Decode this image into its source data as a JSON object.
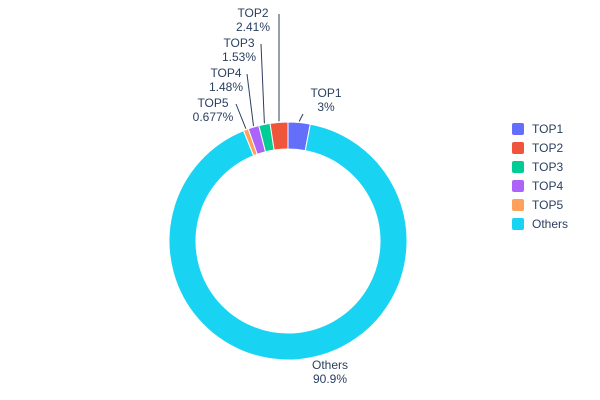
{
  "chart_data": {
    "type": "pie",
    "labels": [
      "TOP1",
      "TOP2",
      "TOP3",
      "TOP4",
      "TOP5",
      "Others"
    ],
    "values": [
      3,
      2.41,
      1.53,
      1.48,
      0.677,
      90.9
    ],
    "percent_labels": [
      "3%",
      "2.41%",
      "1.53%",
      "1.48%",
      "0.677%",
      "90.9%"
    ],
    "colors": [
      "#636efa",
      "#ef553b",
      "#00cc96",
      "#ab63fa",
      "#ffa15a",
      "#19d3f3"
    ],
    "hole": 0.77,
    "clockwise_order": [
      "TOP1",
      "Others",
      "TOP5",
      "TOP4",
      "TOP3",
      "TOP2"
    ],
    "legend_position": "right",
    "background": "#ffffff",
    "text_color": "#2a3f5f",
    "title": ""
  },
  "annotations": {
    "top1": {
      "name": "TOP1",
      "value": "3%"
    },
    "top2": {
      "name": "TOP2",
      "value": "2.41%"
    },
    "top3": {
      "name": "TOP3",
      "value": "1.53%"
    },
    "top4": {
      "name": "TOP4",
      "value": "1.48%"
    },
    "top5": {
      "name": "TOP5",
      "value": "0.677%"
    },
    "others": {
      "name": "Others",
      "value": "90.9%"
    }
  }
}
